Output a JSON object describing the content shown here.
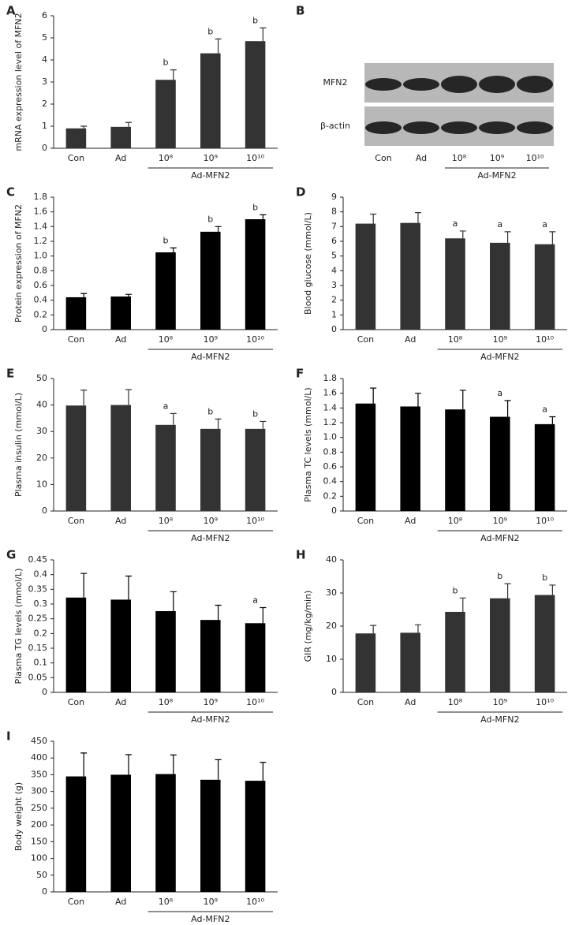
{
  "chart_data": [
    {
      "type": "bar",
      "panel": "A",
      "ylabel": "mRNA expression level of MFN2",
      "categories": [
        "Con",
        "Ad",
        "10⁸",
        "10⁹",
        "10¹⁰"
      ],
      "group_label": "Ad-MFN2",
      "values": [
        0.9,
        0.97,
        3.1,
        4.3,
        4.85
      ],
      "errors": [
        0.1,
        0.2,
        0.45,
        0.65,
        0.6
      ],
      "annotations": [
        null,
        null,
        "b",
        "b",
        "b"
      ],
      "color": "#333333",
      "ylim": [
        0,
        6
      ],
      "yticks": [
        0,
        1,
        2,
        3,
        4,
        5,
        6
      ]
    },
    {
      "type": "blot",
      "panel": "B",
      "rows": [
        "MFN2",
        "β-actin"
      ],
      "categories": [
        "Con",
        "Ad",
        "10⁸",
        "10⁹",
        "10¹⁰"
      ],
      "group_label": "Ad-MFN2"
    },
    {
      "type": "bar",
      "panel": "C",
      "ylabel": "Protein expression of MFN2",
      "categories": [
        "Con",
        "Ad",
        "10⁸",
        "10⁹",
        "10¹⁰"
      ],
      "group_label": "Ad-MFN2",
      "values": [
        0.44,
        0.45,
        1.05,
        1.33,
        1.5
      ],
      "errors": [
        0.05,
        0.03,
        0.06,
        0.07,
        0.06
      ],
      "annotations": [
        null,
        null,
        "b",
        "b",
        "b"
      ],
      "color": "#000000",
      "ylim": [
        0,
        1.8
      ],
      "yticks": [
        0,
        0.2,
        0.4,
        0.6,
        0.8,
        {
          "value": 1,
          "label": "1.0"
        },
        1.2,
        1.4,
        1.6,
        1.8
      ]
    },
    {
      "type": "bar",
      "panel": "D",
      "ylabel": "Blood glucose (mmol/L)",
      "categories": [
        "Con",
        "Ad",
        "10⁸",
        "10⁹",
        "10¹⁰"
      ],
      "group_label": "Ad-MFN2",
      "values": [
        7.2,
        7.25,
        6.2,
        5.9,
        5.8
      ],
      "errors": [
        0.65,
        0.7,
        0.5,
        0.75,
        0.85
      ],
      "annotations": [
        null,
        null,
        "a",
        "a",
        "a"
      ],
      "color": "#333333",
      "ylim": [
        0,
        9
      ],
      "yticks": [
        0,
        1,
        2,
        3,
        4,
        5,
        6,
        7,
        8,
        9
      ]
    },
    {
      "type": "bar",
      "panel": "E",
      "ylabel": "Plasma insulin (mmol/L)",
      "categories": [
        "Con",
        "Ad",
        "10⁸",
        "10⁹",
        "10¹⁰"
      ],
      "group_label": "Ad-MFN2",
      "values": [
        39.8,
        40,
        32.5,
        31,
        31
      ],
      "errors": [
        5.8,
        5.8,
        4.3,
        3.7,
        2.8
      ],
      "annotations": [
        null,
        null,
        "a",
        "b",
        "b"
      ],
      "color": "#333333",
      "ylim": [
        0,
        50
      ],
      "yticks": [
        0,
        10,
        20,
        30,
        40,
        50
      ]
    },
    {
      "type": "bar",
      "panel": "F",
      "ylabel": "Plasma TC levels (mmol/L)",
      "categories": [
        "Con",
        "Ad",
        "10⁸",
        "10⁹",
        "10¹⁰"
      ],
      "group_label": "Ad-MFN2",
      "values": [
        1.46,
        1.42,
        1.38,
        1.28,
        1.18
      ],
      "errors": [
        0.21,
        0.18,
        0.26,
        0.22,
        0.1
      ],
      "annotations": [
        null,
        null,
        null,
        "a",
        "a"
      ],
      "color": "#000000",
      "ylim": [
        0,
        1.8
      ],
      "yticks": [
        0,
        0.2,
        0.4,
        0.6,
        0.8,
        {
          "value": 1,
          "label": "1.0"
        },
        1.2,
        1.4,
        1.6,
        1.8
      ]
    },
    {
      "type": "bar",
      "panel": "G",
      "ylabel": "Plasma TG levels (mmol/L)",
      "categories": [
        "Con",
        "Ad",
        "10⁸",
        "10⁹",
        "10¹⁰"
      ],
      "group_label": "Ad-MFN2",
      "values": [
        0.322,
        0.315,
        0.276,
        0.246,
        0.235
      ],
      "errors": [
        0.082,
        0.08,
        0.066,
        0.05,
        0.053
      ],
      "annotations": [
        null,
        null,
        null,
        null,
        "a"
      ],
      "color": "#000000",
      "ylim": [
        0,
        0.45
      ],
      "yticks": [
        0,
        0.05,
        0.1,
        0.15,
        0.2,
        0.25,
        0.3,
        0.35,
        0.4,
        0.45
      ]
    },
    {
      "type": "bar",
      "panel": "H",
      "ylabel": "GIR (mg/kg/min)",
      "categories": [
        "Con",
        "Ad",
        "10⁸",
        "10⁹",
        "10¹⁰"
      ],
      "group_label": "Ad-MFN2",
      "values": [
        17.8,
        18,
        24.3,
        28.4,
        29.4
      ],
      "errors": [
        2.4,
        2.4,
        4.2,
        4.4,
        3
      ],
      "annotations": [
        null,
        null,
        "b",
        "b",
        "b"
      ],
      "color": "#333333",
      "ylim": [
        0,
        40
      ],
      "yticks": [
        0,
        10,
        20,
        30,
        40
      ]
    },
    {
      "type": "bar",
      "panel": "I",
      "ylabel": "Body weight (g)",
      "categories": [
        "Con",
        "Ad",
        "10⁸",
        "10⁹",
        "10¹⁰"
      ],
      "group_label": "Ad-MFN2",
      "values": [
        345,
        350,
        352,
        335,
        332
      ],
      "errors": [
        70,
        60,
        57,
        60,
        55
      ],
      "annotations": [
        null,
        null,
        null,
        null,
        null
      ],
      "color": "#000000",
      "ylim": [
        0,
        450
      ],
      "yticks": [
        0,
        50,
        100,
        150,
        200,
        250,
        300,
        350,
        400,
        450
      ]
    }
  ]
}
